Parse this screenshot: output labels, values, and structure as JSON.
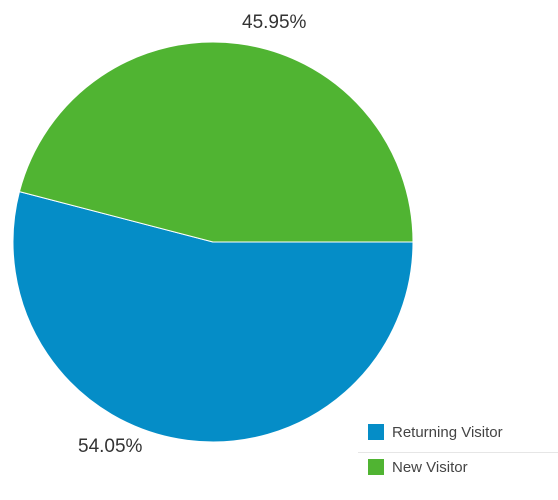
{
  "chart_data": {
    "type": "pie",
    "categories": [
      "Returning Visitor",
      "New Visitor"
    ],
    "values": [
      54.05,
      45.95
    ],
    "value_labels": [
      "54.05%",
      "45.95%"
    ],
    "colors": [
      "#058dc7",
      "#50b432"
    ],
    "start_angle_deg": 0,
    "direction": "clockwise",
    "legend_position": "bottom-right"
  },
  "legend": {
    "items": [
      {
        "label": "Returning Visitor",
        "color": "#058dc7"
      },
      {
        "label": "New Visitor",
        "color": "#50b432"
      }
    ]
  }
}
